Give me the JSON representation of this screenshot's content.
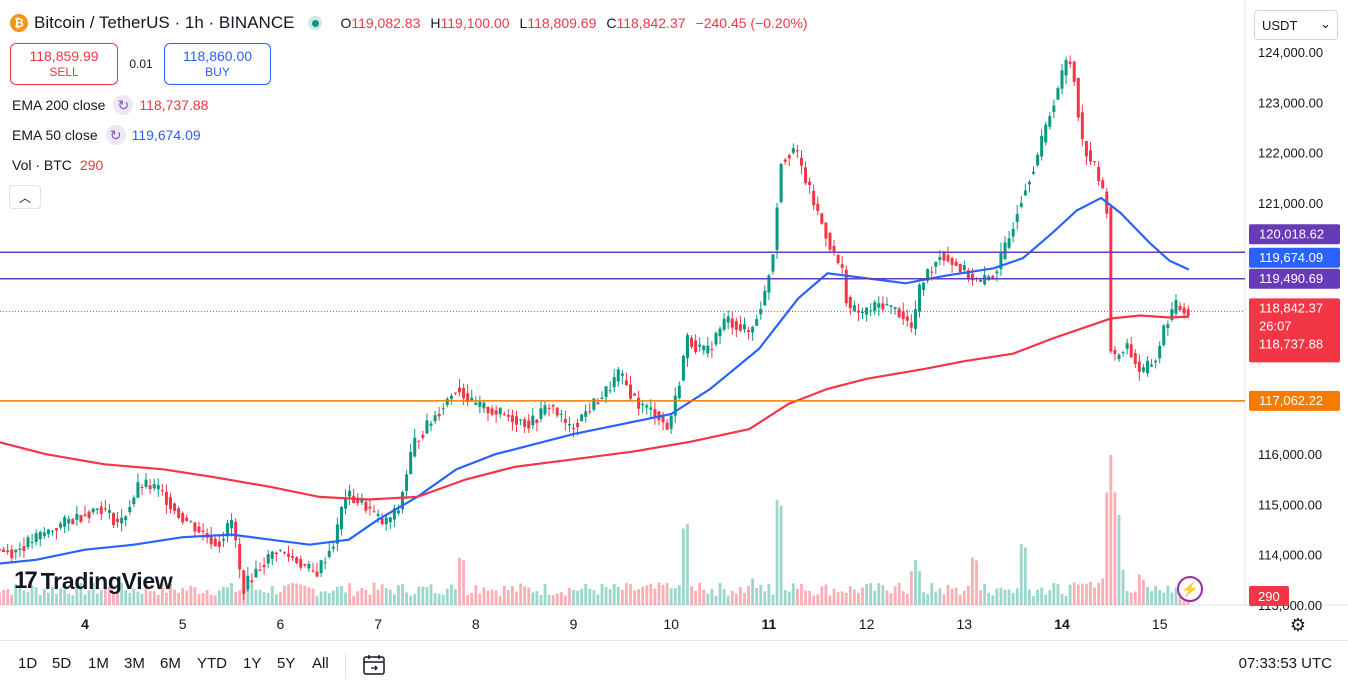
{
  "header": {
    "title": "Bitcoin / TetherUS · 1h · BINANCE",
    "btc_symbol": "₿",
    "ohlc": [
      {
        "k": "O",
        "v": "119,082.83"
      },
      {
        "k": "H",
        "v": "119,100.00"
      },
      {
        "k": "L",
        "v": "118,809.69"
      },
      {
        "k": "C",
        "v": "118,842.37"
      }
    ],
    "change": "−240.45 (−0.20%)"
  },
  "currency": {
    "value": "USDT",
    "chevron": "⌄"
  },
  "trade": {
    "sell_price": "118,859.99",
    "sell_label": "SELL",
    "buy_price": "118,860.00",
    "buy_label": "BUY",
    "spread": "0.01"
  },
  "indicators": [
    {
      "name": "EMA 200 close",
      "value": "118,737.88",
      "color": "#f23645"
    },
    {
      "name": "EMA 50 close",
      "value": "119,674.09",
      "color": "#2962ff"
    },
    {
      "name": "Vol · BTC",
      "value": "290",
      "color": "#f23645"
    }
  ],
  "logo": {
    "text": "TradingView",
    "mark": "17"
  },
  "bottom": {
    "ranges": [
      "1D",
      "5D",
      "1M",
      "3M",
      "6M",
      "YTD",
      "1Y",
      "5Y",
      "All"
    ],
    "time": "07:33:53 UTC"
  },
  "colors": {
    "up": "#089981",
    "down": "#f23645",
    "ema50": "#2962ff",
    "ema200": "#f23645",
    "hline_purple": "#673ab7",
    "hline_orange": "#f57c00"
  },
  "chart_data": {
    "type": "candlestick",
    "title": "Bitcoin / TetherUS · 1h · BINANCE",
    "ylim": [
      113000,
      124600
    ],
    "y_ticks": [
      "124,000.00",
      "123,000.00",
      "122,000.00",
      "121,000.00",
      "116,000.00",
      "115,000.00",
      "114,000.00",
      "113,000.00"
    ],
    "y_tick_values": [
      124000,
      123000,
      122000,
      121000,
      116000,
      115000,
      114000,
      113000
    ],
    "partial_tick": "119,000.00",
    "partial_tick_value": 119000,
    "x_ticks": [
      "4",
      "5",
      "6",
      "7",
      "8",
      "9",
      "10",
      "11",
      "12",
      "13",
      "14",
      "15"
    ],
    "x_tick_bold": [
      "4",
      "11",
      "14"
    ],
    "x_range_days": [
      3.0,
      15.4
    ],
    "price_series": [
      [
        3.0,
        114150
      ],
      [
        3.3,
        114050
      ],
      [
        3.6,
        114400
      ],
      [
        3.9,
        114700
      ],
      [
        4.2,
        114950
      ],
      [
        4.4,
        114600
      ],
      [
        4.6,
        115400
      ],
      [
        4.8,
        115300
      ],
      [
        5.0,
        114800
      ],
      [
        5.2,
        114500
      ],
      [
        5.4,
        114200
      ],
      [
        5.55,
        114700
      ],
      [
        5.65,
        113300
      ],
      [
        5.8,
        113700
      ],
      [
        6.0,
        114100
      ],
      [
        6.2,
        113900
      ],
      [
        6.4,
        113600
      ],
      [
        6.6,
        114300
      ],
      [
        6.7,
        115200
      ],
      [
        6.9,
        115000
      ],
      [
        7.1,
        114600
      ],
      [
        7.25,
        114900
      ],
      [
        7.4,
        116200
      ],
      [
        7.6,
        116700
      ],
      [
        7.85,
        117350
      ],
      [
        8.0,
        117000
      ],
      [
        8.3,
        116800
      ],
      [
        8.6,
        116600
      ],
      [
        8.8,
        117000
      ],
      [
        9.0,
        116500
      ],
      [
        9.2,
        116900
      ],
      [
        9.4,
        117300
      ],
      [
        9.5,
        117600
      ],
      [
        9.7,
        117000
      ],
      [
        9.9,
        116800
      ],
      [
        10.0,
        116500
      ],
      [
        10.1,
        117200
      ],
      [
        10.2,
        118300
      ],
      [
        10.4,
        118000
      ],
      [
        10.6,
        118700
      ],
      [
        10.85,
        118400
      ],
      [
        11.0,
        119200
      ],
      [
        11.1,
        120200
      ],
      [
        11.15,
        121800
      ],
      [
        11.3,
        122100
      ],
      [
        11.5,
        121000
      ],
      [
        11.7,
        120000
      ],
      [
        11.8,
        119600
      ],
      [
        11.85,
        118900
      ],
      [
        12.0,
        118800
      ],
      [
        12.2,
        119000
      ],
      [
        12.4,
        118800
      ],
      [
        12.5,
        118500
      ],
      [
        12.6,
        119400
      ],
      [
        12.8,
        120000
      ],
      [
        13.0,
        119700
      ],
      [
        13.2,
        119400
      ],
      [
        13.35,
        119600
      ],
      [
        13.5,
        120300
      ],
      [
        13.6,
        121000
      ],
      [
        13.8,
        122000
      ],
      [
        13.95,
        123000
      ],
      [
        14.1,
        123900
      ],
      [
        14.15,
        123700
      ],
      [
        14.25,
        122200
      ],
      [
        14.4,
        121600
      ],
      [
        14.5,
        120900
      ],
      [
        14.52,
        118900
      ],
      [
        14.55,
        117800
      ],
      [
        14.7,
        118200
      ],
      [
        14.85,
        117600
      ],
      [
        15.0,
        117900
      ],
      [
        15.1,
        118600
      ],
      [
        15.2,
        118950
      ],
      [
        15.3,
        118850
      ]
    ],
    "series": [
      {
        "name": "EMA 50 close",
        "value": 119674.09,
        "color": "#2962ff",
        "points": [
          [
            3.0,
            113800
          ],
          [
            3.5,
            113900
          ],
          [
            4.0,
            114100
          ],
          [
            4.5,
            114200
          ],
          [
            5.0,
            114350
          ],
          [
            5.5,
            114400
          ],
          [
            5.9,
            114300
          ],
          [
            6.3,
            114200
          ],
          [
            6.7,
            114300
          ],
          [
            7.0,
            114700
          ],
          [
            7.4,
            115150
          ],
          [
            7.8,
            115700
          ],
          [
            8.2,
            116000
          ],
          [
            8.6,
            116200
          ],
          [
            9.0,
            116400
          ],
          [
            9.5,
            116600
          ],
          [
            10.0,
            116800
          ],
          [
            10.4,
            117300
          ],
          [
            10.9,
            118100
          ],
          [
            11.3,
            119100
          ],
          [
            11.6,
            119600
          ],
          [
            12.0,
            119500
          ],
          [
            12.4,
            119400
          ],
          [
            12.8,
            119550
          ],
          [
            13.3,
            119700
          ],
          [
            13.6,
            119900
          ],
          [
            13.9,
            120400
          ],
          [
            14.15,
            120850
          ],
          [
            14.4,
            121100
          ],
          [
            14.6,
            120800
          ],
          [
            14.9,
            120200
          ],
          [
            15.1,
            119850
          ],
          [
            15.3,
            119674
          ]
        ]
      },
      {
        "name": "EMA 200 close",
        "value": 118737.88,
        "color": "#f23645",
        "points": [
          [
            3.0,
            116300
          ],
          [
            3.6,
            116000
          ],
          [
            4.2,
            115800
          ],
          [
            4.8,
            115700
          ],
          [
            5.3,
            115550
          ],
          [
            5.9,
            115350
          ],
          [
            6.4,
            115150
          ],
          [
            6.9,
            115100
          ],
          [
            7.4,
            115150
          ],
          [
            7.9,
            115500
          ],
          [
            8.4,
            115750
          ],
          [
            9.0,
            115900
          ],
          [
            9.6,
            116050
          ],
          [
            10.2,
            116250
          ],
          [
            10.8,
            116500
          ],
          [
            11.2,
            117000
          ],
          [
            11.6,
            117300
          ],
          [
            12.0,
            117500
          ],
          [
            12.6,
            117700
          ],
          [
            13.0,
            117850
          ],
          [
            13.5,
            118000
          ],
          [
            13.9,
            118300
          ],
          [
            14.2,
            118500
          ],
          [
            14.5,
            118700
          ],
          [
            14.8,
            118760
          ],
          [
            15.1,
            118720
          ],
          [
            15.3,
            118738
          ]
        ]
      }
    ],
    "horizontal_lines": [
      {
        "price": 120018.62,
        "label": "120,018.62",
        "color": "#673ab7"
      },
      {
        "price": 119490.69,
        "label": "119,490.69",
        "color": "#673ab7"
      },
      {
        "price": 117062.22,
        "label": "117,062.22",
        "color": "#f57c00"
      }
    ],
    "price_labels": [
      {
        "label": "119,674.09",
        "color": "#2962ff"
      },
      {
        "label": "118,842.37",
        "sub": "26:07",
        "color": "#f23645"
      },
      {
        "label": "118,737.88",
        "color": "#f23645"
      }
    ],
    "volume": {
      "label": "290",
      "spikes": [
        [
          7.85,
          0.35
        ],
        [
          10.15,
          0.6
        ],
        [
          11.1,
          0.78
        ],
        [
          13.6,
          0.45
        ],
        [
          14.5,
          1.0
        ],
        [
          14.55,
          0.75
        ],
        [
          13.1,
          0.35
        ],
        [
          12.5,
          0.3
        ]
      ]
    }
  }
}
